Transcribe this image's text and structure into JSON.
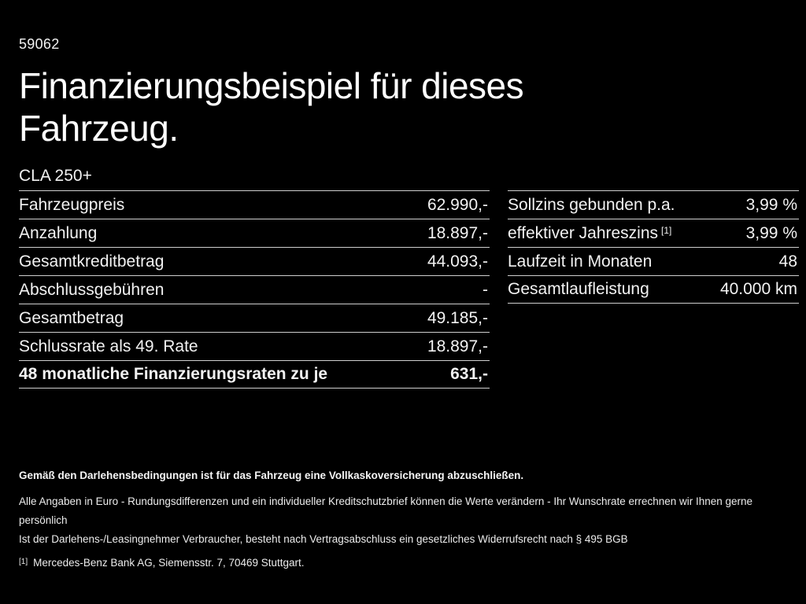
{
  "page": {
    "vehicle_id": "59062",
    "title": "Finanzierungsbeispiel für dieses Fahrzeug.",
    "model": "CLA 250+"
  },
  "finance_table": {
    "rows": [
      {
        "label": "Fahrzeugpreis",
        "value": "62.990,-",
        "emphasis": false
      },
      {
        "label": "Anzahlung",
        "value": "18.897,-",
        "emphasis": false
      },
      {
        "label": "Gesamtkreditbetrag",
        "value": "44.093,-",
        "emphasis": false
      },
      {
        "label": "Abschlussgebühren",
        "value": "-",
        "emphasis": false
      },
      {
        "label": "Gesamtbetrag",
        "value": "49.185,-",
        "emphasis": false
      },
      {
        "label": "Schlussrate als 49. Rate",
        "value": "18.897,-",
        "emphasis": false
      },
      {
        "label": "48 monatliche Finanzierungsraten zu je",
        "value": "631,-",
        "emphasis": true
      }
    ]
  },
  "conditions_table": {
    "rows": [
      {
        "label": "Sollzins gebunden p.a.",
        "value": "3,99 %"
      },
      {
        "label": "effektiver Jahreszins",
        "footnote_marker": "[1]",
        "value": "3,99 %"
      },
      {
        "label": "Laufzeit in Monaten",
        "value": "48"
      },
      {
        "label": "Gesamtlaufleistung",
        "value": "40.000 km"
      }
    ]
  },
  "footer": {
    "insurance_note": "Gemäß den Darlehensbedingungen ist für das Fahrzeug eine Vollkaskoversicherung abzuschließen.",
    "disclaimer_line1": "Alle Angaben in Euro - Rundungsdifferenzen und ein individueller Kreditschutzbrief können die Werte verändern - Ihr Wunschrate errechnen wir Ihnen gerne persönlich",
    "disclaimer_line2": "Ist der Darlehens-/Leasingnehmer Verbraucher, besteht nach Vertragsabschluss ein gesetzliches Widerrufsrecht nach § 495 BGB",
    "footnote_marker": "[1]",
    "footnote_text": "Mercedes-Benz Bank AG, Siemensstr. 7, 70469 Stuttgart."
  },
  "colors": {
    "background": "#000000",
    "text": "#f2f2f2",
    "title": "#ffffff",
    "divider": "#cfcfcf"
  }
}
